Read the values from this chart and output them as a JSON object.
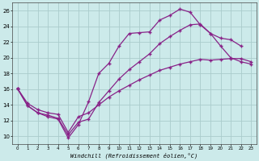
{
  "background_color": "#cceaea",
  "grid_color": "#aacccc",
  "line_color": "#882288",
  "xlabel": "Windchill (Refroidissement éolien,°C)",
  "xlim": [
    -0.5,
    23.5
  ],
  "ylim": [
    9.0,
    27.0
  ],
  "yticks": [
    10,
    12,
    14,
    16,
    18,
    20,
    22,
    24,
    26
  ],
  "xticks": [
    0,
    1,
    2,
    3,
    4,
    5,
    6,
    7,
    8,
    9,
    10,
    11,
    12,
    13,
    14,
    15,
    16,
    17,
    18,
    19,
    20,
    21,
    22,
    23
  ],
  "curve1_x": [
    0,
    1,
    2,
    3,
    4,
    5,
    6,
    7,
    8,
    9,
    10,
    11,
    12,
    13,
    14,
    15,
    16,
    17,
    18,
    19,
    20,
    21,
    22
  ],
  "curve1_y": [
    16.1,
    13.9,
    13.0,
    12.5,
    12.2,
    9.8,
    11.5,
    14.4,
    18.0,
    19.3,
    21.5,
    23.1,
    23.2,
    23.3,
    24.8,
    25.4,
    26.2,
    25.8,
    24.2,
    23.1,
    22.5,
    22.3,
    21.5
  ],
  "curve2_x": [
    0,
    1,
    2,
    3,
    4,
    5,
    6,
    7,
    8,
    9,
    10,
    11,
    12,
    13,
    14,
    15,
    16,
    17,
    18,
    19,
    20,
    21,
    22,
    23
  ],
  "curve2_y": [
    16.1,
    13.9,
    13.0,
    12.7,
    12.3,
    10.2,
    11.8,
    12.2,
    14.3,
    15.8,
    17.3,
    18.5,
    19.5,
    20.5,
    21.8,
    22.7,
    23.5,
    24.2,
    24.3,
    23.1,
    21.5,
    20.0,
    19.5,
    19.2
  ],
  "curve3_x": [
    0,
    1,
    2,
    3,
    4,
    5,
    6,
    7,
    8,
    9,
    10,
    11,
    12,
    13,
    14,
    15,
    16,
    17,
    18,
    19,
    20,
    21,
    22,
    23
  ],
  "curve3_y": [
    16.1,
    14.2,
    13.4,
    13.0,
    12.8,
    10.5,
    12.5,
    13.0,
    14.0,
    15.0,
    15.8,
    16.5,
    17.2,
    17.8,
    18.4,
    18.8,
    19.2,
    19.5,
    19.8,
    19.7,
    19.8,
    19.9,
    19.9,
    19.5
  ]
}
